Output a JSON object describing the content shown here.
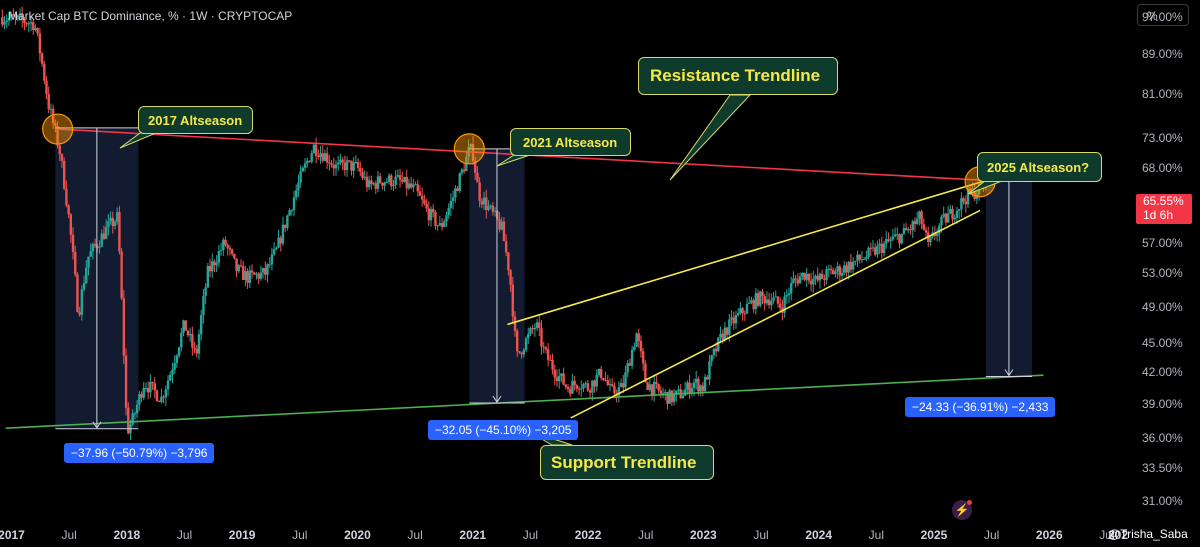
{
  "header": {
    "title": "Market Cap BTC Dominance, % · 1W · CRYPTOCAP",
    "unit_button": "%"
  },
  "price_tag": {
    "value": "65.55%",
    "countdown": "1d 6h"
  },
  "watermark": "@Trisha_Saba",
  "annotations": {
    "altseason_2017": "2017 Altseason",
    "altseason_2021": "2021 Altseason",
    "altseason_2025": "2025 Altseason?",
    "resistance": "Resistance Trendline",
    "support": "Support Trendline"
  },
  "measurements": {
    "m2017": "−37.96 (−50.79%) −3,796",
    "m2021": "−32.05 (−45.10%) −3,205",
    "m2025": "−24.33 (−36.91%) −2,433"
  },
  "colors": {
    "up": "#26a69a",
    "down": "#ef5350",
    "resistance": "#f23645",
    "support": "#4caf50",
    "wedge": "#f5e94a",
    "callout_bg": "#0e3b2c",
    "measure": "#2962ff"
  },
  "chart_data": {
    "type": "candlestick",
    "title": "Market Cap BTC Dominance, % · 1W · CRYPTOCAP",
    "y_scale": "log",
    "ylim": [
      29.5,
      101
    ],
    "xlim": [
      2016.9,
      2026.7
    ],
    "y_ticks": [
      "97.00%",
      "89.00%",
      "81.00%",
      "73.00%",
      "68.00%",
      "57.00%",
      "53.00%",
      "49.00%",
      "45.00%",
      "42.00%",
      "39.00%",
      "36.00%",
      "33.50%",
      "31.00%"
    ],
    "x_ticks": [
      "Jul",
      "2017",
      "Jul",
      "2018",
      "Jul",
      "2019",
      "Jul",
      "2020",
      "Jul",
      "2021",
      "Jul",
      "2022",
      "Jul",
      "2023",
      "Jul",
      "2024",
      "Jul",
      "2025",
      "Jul",
      "2026",
      "Jul",
      "202"
    ],
    "anchors": [
      [
        2016.92,
        97.0
      ],
      [
        2017.12,
        96.0
      ],
      [
        2017.2,
        95.5
      ],
      [
        2017.25,
        89.0
      ],
      [
        2017.32,
        79.0
      ],
      [
        2017.42,
        70.5
      ],
      [
        2017.5,
        60.0
      ],
      [
        2017.58,
        48.0
      ],
      [
        2017.66,
        55.0
      ],
      [
        2017.75,
        57.0
      ],
      [
        2017.83,
        59.0
      ],
      [
        2017.92,
        60.5
      ],
      [
        2017.96,
        48.0
      ],
      [
        2018.0,
        36.5
      ],
      [
        2018.05,
        37.5
      ],
      [
        2018.15,
        41.0
      ],
      [
        2018.3,
        39.5
      ],
      [
        2018.38,
        42.0
      ],
      [
        2018.5,
        47.0
      ],
      [
        2018.6,
        43.5
      ],
      [
        2018.7,
        53.0
      ],
      [
        2018.85,
        57.0
      ],
      [
        2018.95,
        53.5
      ],
      [
        2019.05,
        52.5
      ],
      [
        2019.2,
        53.0
      ],
      [
        2019.3,
        56.0
      ],
      [
        2019.42,
        62.0
      ],
      [
        2019.52,
        67.0
      ],
      [
        2019.62,
        71.5
      ],
      [
        2019.72,
        70.0
      ],
      [
        2019.82,
        68.0
      ],
      [
        2019.9,
        68.5
      ],
      [
        2020.0,
        68.0
      ],
      [
        2020.1,
        65.0
      ],
      [
        2020.2,
        66.0
      ],
      [
        2020.35,
        66.0
      ],
      [
        2020.5,
        64.5
      ],
      [
        2020.6,
        61.5
      ],
      [
        2020.72,
        59.0
      ],
      [
        2020.82,
        63.0
      ],
      [
        2020.92,
        68.0
      ],
      [
        2020.97,
        71.0
      ],
      [
        2021.0,
        70.5
      ],
      [
        2021.05,
        64.0
      ],
      [
        2021.15,
        61.5
      ],
      [
        2021.25,
        59.0
      ],
      [
        2021.32,
        53.0
      ],
      [
        2021.38,
        43.5
      ],
      [
        2021.45,
        45.0
      ],
      [
        2021.55,
        47.0
      ],
      [
        2021.62,
        44.0
      ],
      [
        2021.72,
        42.0
      ],
      [
        2021.82,
        40.5
      ],
      [
        2021.92,
        41.0
      ],
      [
        2022.0,
        40.5
      ],
      [
        2022.12,
        42.0
      ],
      [
        2022.2,
        40.0
      ],
      [
        2022.3,
        40.5
      ],
      [
        2022.42,
        46.0
      ],
      [
        2022.5,
        41.0
      ],
      [
        2022.62,
        40.0
      ],
      [
        2022.72,
        39.5
      ],
      [
        2022.82,
        40.0
      ],
      [
        2022.92,
        41.0
      ],
      [
        2023.0,
        40.5
      ],
      [
        2023.08,
        43.5
      ],
      [
        2023.17,
        46.0
      ],
      [
        2023.27,
        47.5
      ],
      [
        2023.38,
        49.0
      ],
      [
        2023.48,
        50.0
      ],
      [
        2023.58,
        50.0
      ],
      [
        2023.68,
        49.0
      ],
      [
        2023.78,
        52.0
      ],
      [
        2023.88,
        53.0
      ],
      [
        2023.98,
        52.0
      ],
      [
        2024.08,
        53.0
      ],
      [
        2024.2,
        53.5
      ],
      [
        2024.32,
        54.5
      ],
      [
        2024.45,
        55.5
      ],
      [
        2024.55,
        56.5
      ],
      [
        2024.65,
        57.5
      ],
      [
        2024.72,
        58.0
      ],
      [
        2024.8,
        59.0
      ],
      [
        2024.88,
        60.5
      ],
      [
        2024.95,
        56.5
      ],
      [
        2025.0,
        58.0
      ],
      [
        2025.08,
        60.0
      ],
      [
        2025.18,
        61.5
      ],
      [
        2025.28,
        63.5
      ],
      [
        2025.38,
        64.5
      ],
      [
        2025.45,
        65.55
      ]
    ],
    "lines": [
      {
        "name": "Resistance Trendline",
        "role": "resistance",
        "points": [
          [
            2017.4,
            74.5
          ],
          [
            2025.45,
            66.0
          ]
        ]
      },
      {
        "name": "Support Trendline",
        "role": "support",
        "points": [
          [
            2016.95,
            36.8
          ],
          [
            2025.95,
            41.7
          ]
        ]
      },
      {
        "role": "wedge",
        "points": [
          [
            2021.3,
            47.0
          ],
          [
            2025.45,
            66.0
          ]
        ]
      },
      {
        "role": "wedge",
        "points": [
          [
            2021.85,
            37.7
          ],
          [
            2025.4,
            61.5
          ]
        ]
      }
    ],
    "drawdowns": [
      {
        "label": "−37.96 (−50.79%) −3,796",
        "from": [
          2017.38,
          74.7
        ],
        "to": [
          2018.0,
          36.75
        ],
        "x_end": 2018.1
      },
      {
        "label": "−32.05 (−45.10%) −3,205",
        "from": [
          2020.97,
          71.1
        ],
        "to": [
          2021.38,
          39.05
        ],
        "x_end": 2021.45
      },
      {
        "label": "−24.33 (−36.91%) −2,433",
        "from": [
          2025.45,
          65.9
        ],
        "to": [
          2025.85,
          41.57
        ],
        "x_end": 2025.85
      }
    ],
    "highlights": [
      [
        2017.4,
        74.5
      ],
      [
        2020.97,
        71.1
      ],
      [
        2025.4,
        65.8
      ]
    ]
  }
}
